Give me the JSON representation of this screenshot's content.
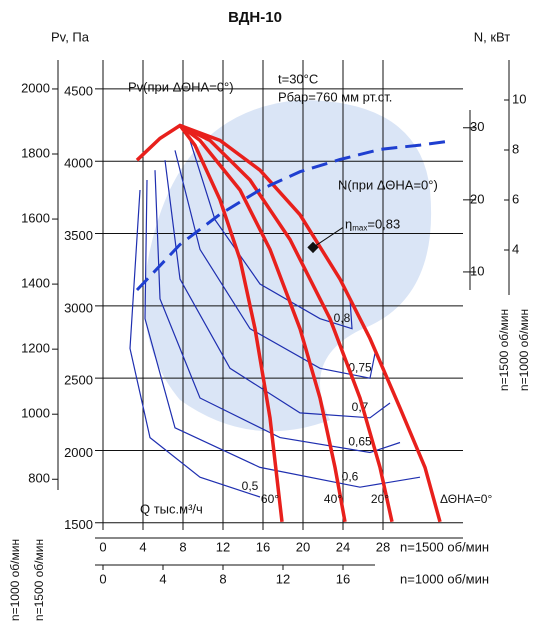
{
  "chart_data": {
    "type": "line",
    "title": "ВДН-10",
    "y_label": "Pv, Па",
    "y2_label": "N, кВт",
    "annotations": {
      "pv_note": "Pv(при ΔΘНА=0°)",
      "temp": "t=30°C",
      "pressure": "Pбар=760 мм рт.ст.",
      "q_label": "Q тыс.м³/ч",
      "eta": "η",
      "eta_sub": "max",
      "eta_value": "=0,83",
      "eta_point": {
        "x": 21,
        "y": 3404
      }
    },
    "x_axis_label": "n=1500 об/мин",
    "x2_axis_label": "n=1000 об/мин",
    "y_side_label": "n=1500 об/мин",
    "y3_side_label": "n=1000 об/мин",
    "y2_side_label": "n=1500 об/мин",
    "y4_side_label": "n=1000 об/мин",
    "xlim": [
      0,
      36
    ],
    "xticks": [
      0,
      4,
      8,
      12,
      16,
      20,
      24,
      28
    ],
    "x2lim": [
      0,
      24
    ],
    "x2ticks": [
      0,
      4,
      8,
      12,
      16
    ],
    "ylim": [
      1450,
      4700
    ],
    "yticks": [
      1500,
      2000,
      2500,
      3000,
      3500,
      4000,
      4500
    ],
    "y3lim": [
      644,
      2089
    ],
    "y3ticks": [
      800,
      1000,
      1200,
      1400,
      1600,
      1800,
      2000
    ],
    "y2lim": [
      -25.8,
      39.4
    ],
    "y2ticks": [
      10,
      20,
      30
    ],
    "y4lim": [
      -7.2,
      11.6
    ],
    "y4ticks": [
      4,
      6,
      8,
      10
    ],
    "grid": true,
    "series": [
      {
        "name": "ΔΘНА=0°",
        "color": "#e8201c",
        "x": [
          3.4,
          5.7,
          7.7,
          11.7,
          15.7,
          19.7,
          23.7,
          26.7,
          29.7,
          32.2,
          33.7
        ],
        "values": [
          4007,
          4158,
          4247,
          4144,
          3938,
          3630,
          3185,
          2774,
          2294,
          1883,
          1507
        ]
      },
      {
        "name": "20°",
        "color": "#e8201c",
        "x": [
          7.7,
          10.7,
          14.7,
          18.7,
          22.7,
          25.7,
          27.7,
          28.9
        ],
        "values": [
          4247,
          4144,
          3870,
          3459,
          2911,
          2363,
          1883,
          1507
        ]
      },
      {
        "name": "40°",
        "color": "#e8201c",
        "x": [
          7.7,
          9.7,
          13.7,
          16.7,
          19.7,
          21.7,
          23.2,
          24.2
        ],
        "values": [
          4247,
          4144,
          3801,
          3390,
          2842,
          2363,
          1883,
          1507
        ]
      },
      {
        "name": "60°",
        "color": "#e8201c",
        "x": [
          7.7,
          9.2,
          11.7,
          13.7,
          15.2,
          16.7,
          17.9
        ],
        "values": [
          4247,
          4110,
          3733,
          3322,
          2842,
          2226,
          1507
        ]
      }
    ],
    "efficiency": [
      {
        "name": "0,8",
        "color": "#1f2fb0",
        "x": [
          8.7,
          11.2,
          15.7,
          21.7,
          24.9,
          24.7
        ],
        "values": [
          4144,
          3596,
          3151,
          2911,
          2842,
          3048
        ]
      },
      {
        "name": "0,75",
        "color": "#1f2fb0",
        "x": [
          7.2,
          9.7,
          14.7,
          21.7,
          26.7,
          27.2
        ],
        "values": [
          4075,
          3390,
          2842,
          2568,
          2500,
          2671
        ]
      },
      {
        "name": "0,7",
        "color": "#1f2fb0",
        "x": [
          6.2,
          7.7,
          12.7,
          19.7,
          26.7,
          28.7
        ],
        "values": [
          4007,
          3185,
          2568,
          2260,
          2226,
          2328
        ]
      },
      {
        "name": "0,65",
        "color": "#1f2fb0",
        "x": [
          5.2,
          5.7,
          9.7,
          17.7,
          26.7,
          29.7
        ],
        "values": [
          3938,
          3048,
          2363,
          2089,
          1986,
          2055
        ]
      },
      {
        "name": "0,6",
        "color": "#1f2fb0",
        "x": [
          4.4,
          4.2,
          7.2,
          15.7,
          25.7,
          31.7
        ],
        "values": [
          3870,
          2911,
          2157,
          1883,
          1746,
          1815
        ]
      },
      {
        "name": "0,5",
        "color": "#1f2fb0",
        "x": [
          3.7,
          2.7,
          4.7,
          9.7,
          15.7
        ],
        "values": [
          3801,
          2705,
          2089,
          1815,
          1678
        ]
      }
    ],
    "power": {
      "name": "N(при ΔΘНА=0°)",
      "color": "#1f3fd0",
      "axis": "y2",
      "dashed": true,
      "x": [
        3.4,
        7.7,
        11.7,
        15.7,
        19.7,
        23.7,
        27.7,
        31.7,
        34.4
      ],
      "values": [
        7.5,
        13.8,
        18.0,
        21.4,
        23.9,
        25.6,
        27.0,
        27.6,
        28.1
      ]
    }
  }
}
